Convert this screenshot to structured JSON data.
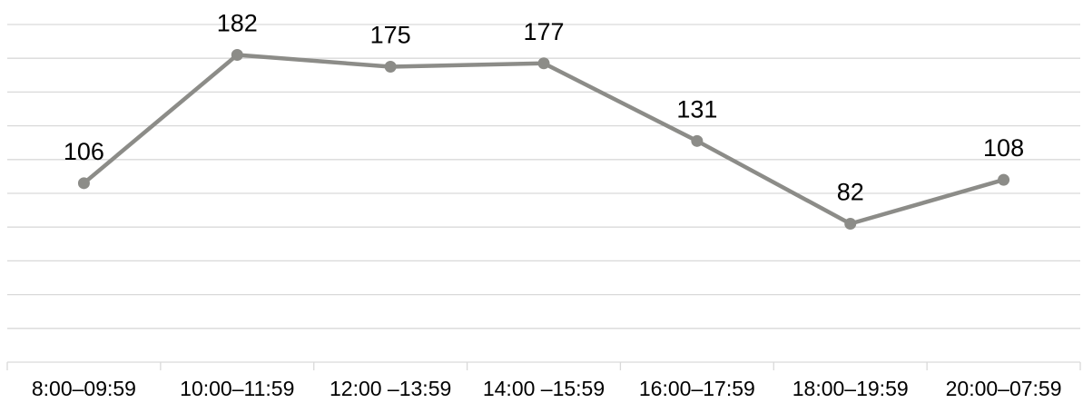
{
  "chart_data": {
    "type": "line",
    "title": "",
    "xlabel": "",
    "ylabel": "",
    "categories": [
      "8:00–09:59",
      "10:00–11:59",
      "12:00 –13:59",
      "14:00 –15:59",
      "16:00–17:59",
      "18:00–19:59",
      "20:00–07:59"
    ],
    "series": [
      {
        "values": [
          106,
          182,
          175,
          177,
          131,
          82,
          108
        ]
      }
    ],
    "ylim": [
      0,
      200
    ],
    "gridlines": true,
    "data_labels": true,
    "y_axis_labels_visible": false,
    "legend": "none",
    "colors": {
      "series": "#8c8c88",
      "grid": "#d9d9d9",
      "text": "#000000"
    }
  }
}
